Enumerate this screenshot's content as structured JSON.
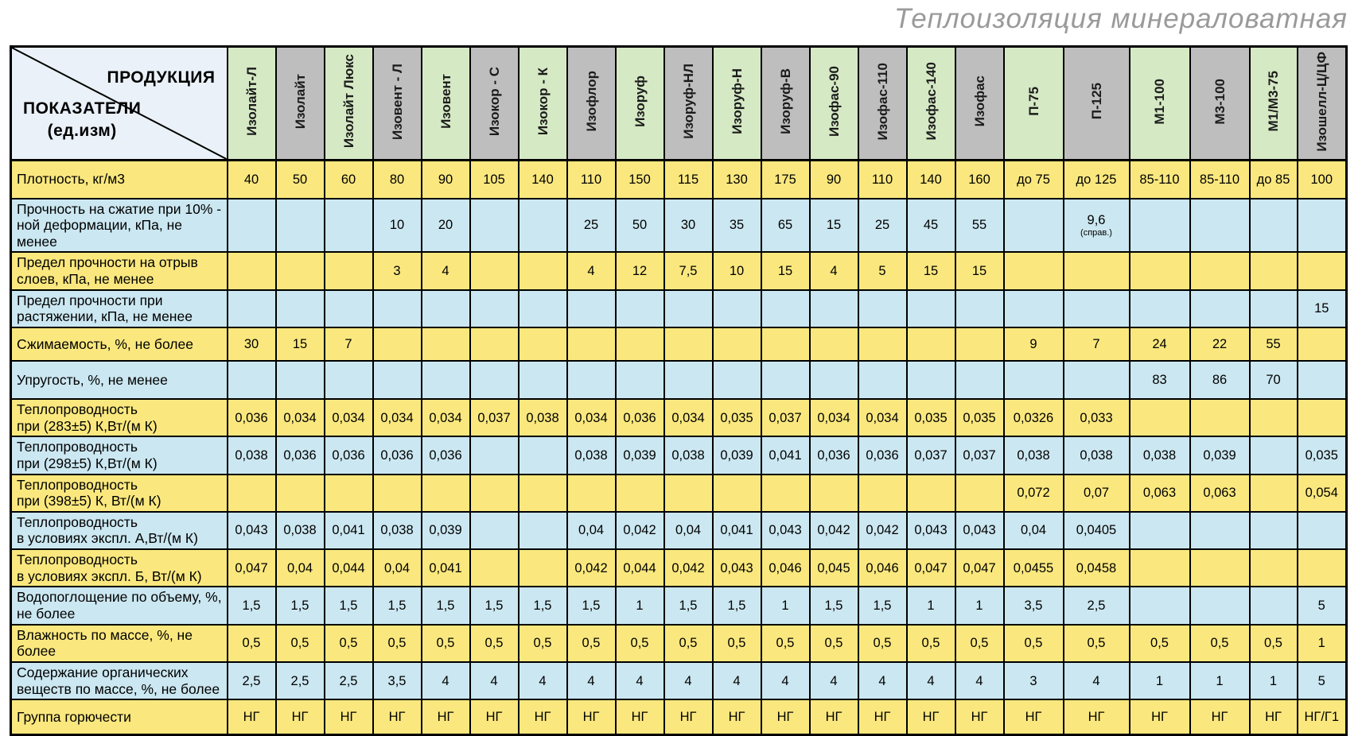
{
  "title": "Теплоизоляция минераловатная",
  "corner": {
    "product_label": "ПРОДУКЦИЯ",
    "indicators_label": "ПОКАЗАТЕЛИ",
    "units_label": "(ед.изм)"
  },
  "columns": [
    "Изолайт-Л",
    "Изолайт",
    "Изолайт Люкс",
    "Изовент - Л",
    "Изовент",
    "Изокор - С",
    "Изокор - К",
    "Изофлор",
    "Изоруф",
    "Изоруф-НЛ",
    "Изоруф-Н",
    "Изоруф-В",
    "Изофас-90",
    "Изофас-110",
    "Изофас-140",
    "Изофас",
    "П-75",
    "П-125",
    "М1-100",
    "М3-100",
    "М1/М3-75",
    "Изошелл-Ц/ЦФ"
  ],
  "rows": [
    {
      "label": "Плотность, кг/м3",
      "values": [
        "40",
        "50",
        "60",
        "80",
        "90",
        "105",
        "140",
        "110",
        "150",
        "115",
        "130",
        "175",
        "90",
        "110",
        "140",
        "160",
        "до 75",
        "до 125",
        "85-110",
        "85-110",
        "до 85",
        "100"
      ]
    },
    {
      "label": "Прочность на сжатие при 10% -\nной деформации, кПа, не менее",
      "values": [
        "",
        "",
        "",
        "10",
        "20",
        "",
        "",
        "25",
        "50",
        "30",
        "35",
        "65",
        "15",
        "25",
        "45",
        "55",
        "",
        "9,6\n(справ.)",
        "",
        "",
        "",
        ""
      ]
    },
    {
      "label": "Предел прочности на отрыв\nслоев, кПа, не менее",
      "values": [
        "",
        "",
        "",
        "3",
        "4",
        "",
        "",
        "4",
        "12",
        "7,5",
        "10",
        "15",
        "4",
        "5",
        "15",
        "15",
        "",
        "",
        "",
        "",
        "",
        ""
      ]
    },
    {
      "label": "Предел прочности при\nрастяжении, кПа, не менее",
      "values": [
        "",
        "",
        "",
        "",
        "",
        "",
        "",
        "",
        "",
        "",
        "",
        "",
        "",
        "",
        "",
        "",
        "",
        "",
        "",
        "",
        "",
        "15"
      ]
    },
    {
      "label": "Сжимаемость, %, не более",
      "values": [
        "30",
        "15",
        "7",
        "",
        "",
        "",
        "",
        "",
        "",
        "",
        "",
        "",
        "",
        "",
        "",
        "",
        "9",
        "7",
        "24",
        "22",
        "55",
        ""
      ]
    },
    {
      "label": "Упругость, %, не менее",
      "values": [
        "",
        "",
        "",
        "",
        "",
        "",
        "",
        "",
        "",
        "",
        "",
        "",
        "",
        "",
        "",
        "",
        "",
        "",
        "83",
        "86",
        "70",
        ""
      ]
    },
    {
      "label": "Теплопроводность\nпри (283±5) К,Вт/(м К)",
      "values": [
        "0,036",
        "0,034",
        "0,034",
        "0,034",
        "0,034",
        "0,037",
        "0,038",
        "0,034",
        "0,036",
        "0,034",
        "0,035",
        "0,037",
        "0,034",
        "0,034",
        "0,035",
        "0,035",
        "0,0326",
        "0,033",
        "",
        "",
        "",
        ""
      ]
    },
    {
      "label": "Теплопроводность\nпри (298±5) К,Вт/(м К)",
      "values": [
        "0,038",
        "0,036",
        "0,036",
        "0,036",
        "0,036",
        "",
        "",
        "0,038",
        "0,039",
        "0,038",
        "0,039",
        "0,041",
        "0,036",
        "0,036",
        "0,037",
        "0,037",
        "0,038",
        "0,038",
        "0,038",
        "0,039",
        "",
        "0,035"
      ]
    },
    {
      "label": "Теплопроводность\nпри (398±5) К, Вт/(м К)",
      "values": [
        "",
        "",
        "",
        "",
        "",
        "",
        "",
        "",
        "",
        "",
        "",
        "",
        "",
        "",
        "",
        "",
        "0,072",
        "0,07",
        "0,063",
        "0,063",
        "",
        "0,054"
      ]
    },
    {
      "label": "Теплопроводность\nв условиях экспл. А,Вт/(м К)",
      "values": [
        "0,043",
        "0,038",
        "0,041",
        "0,038",
        "0,039",
        "",
        "",
        "0,04",
        "0,042",
        "0,04",
        "0,041",
        "0,043",
        "0,042",
        "0,042",
        "0,043",
        "0,043",
        "0,04",
        "0,0405",
        "",
        "",
        "",
        ""
      ]
    },
    {
      "label": "Теплопроводность\nв условиях экспл. Б, Вт/(м К)",
      "values": [
        "0,047",
        "0,04",
        "0,044",
        "0,04",
        "0,041",
        "",
        "",
        "0,042",
        "0,044",
        "0,042",
        "0,043",
        "0,046",
        "0,045",
        "0,046",
        "0,047",
        "0,047",
        "0,0455",
        "0,0458",
        "",
        "",
        "",
        ""
      ]
    },
    {
      "label": "Водопоглощение по объему, %,\nне более",
      "values": [
        "1,5",
        "1,5",
        "1,5",
        "1,5",
        "1,5",
        "1,5",
        "1,5",
        "1,5",
        "1",
        "1,5",
        "1,5",
        "1",
        "1,5",
        "1,5",
        "1",
        "1",
        "3,5",
        "2,5",
        "",
        "",
        "",
        "5"
      ]
    },
    {
      "label": "Влажность по массе, %, не более",
      "values": [
        "0,5",
        "0,5",
        "0,5",
        "0,5",
        "0,5",
        "0,5",
        "0,5",
        "0,5",
        "0,5",
        "0,5",
        "0,5",
        "0,5",
        "0,5",
        "0,5",
        "0,5",
        "0,5",
        "0,5",
        "0,5",
        "0,5",
        "0,5",
        "0,5",
        "1"
      ]
    },
    {
      "label": "Содержание органических\nвеществ по массе, %,  не более",
      "values": [
        "2,5",
        "2,5",
        "2,5",
        "3,5",
        "4",
        "4",
        "4",
        "4",
        "4",
        "4",
        "4",
        "4",
        "4",
        "4",
        "4",
        "4",
        "3",
        "4",
        "1",
        "1",
        "1",
        "5"
      ]
    },
    {
      "label": "Группа горючести",
      "values": [
        "НГ",
        "НГ",
        "НГ",
        "НГ",
        "НГ",
        "НГ",
        "НГ",
        "НГ",
        "НГ",
        "НГ",
        "НГ",
        "НГ",
        "НГ",
        "НГ",
        "НГ",
        "НГ",
        "НГ",
        "НГ",
        "НГ",
        "НГ",
        "НГ",
        "НГ/Г1"
      ]
    }
  ],
  "colors": {
    "row_yellow": "#FAE87E",
    "row_blue": "#CBE7F1",
    "header_green": "#D5E9C4",
    "header_gray": "#BEBEBE",
    "corner_bg": "#EAF1F8",
    "border": "#000000",
    "title_gray": "#9A9A9A"
  }
}
